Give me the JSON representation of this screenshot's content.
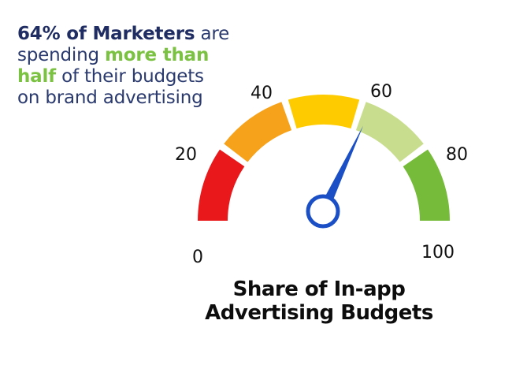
{
  "headline": {
    "highlight_stat": "64% of Marketers",
    "text_1": " are spending ",
    "highlight_green": "more than half",
    "text_2": " of their budgets on brand advertising"
  },
  "chart_data": {
    "type": "gauge",
    "title_line1": "Share of In-app",
    "title_line2": "Advertising Budgets",
    "min": 0,
    "max": 100,
    "ticks": [
      "0",
      "20",
      "40",
      "60",
      "80",
      "100"
    ],
    "value": 64,
    "segments": [
      {
        "from": 0,
        "to": 20,
        "color": "#e8181b"
      },
      {
        "from": 20,
        "to": 40,
        "color": "#f7a21b"
      },
      {
        "from": 40,
        "to": 60,
        "color": "#fecb00"
      },
      {
        "from": 60,
        "to": 80,
        "color": "#c9dd8f"
      },
      {
        "from": 80,
        "to": 100,
        "color": "#76bb39"
      }
    ],
    "needle_color": "#1a4fc6"
  }
}
